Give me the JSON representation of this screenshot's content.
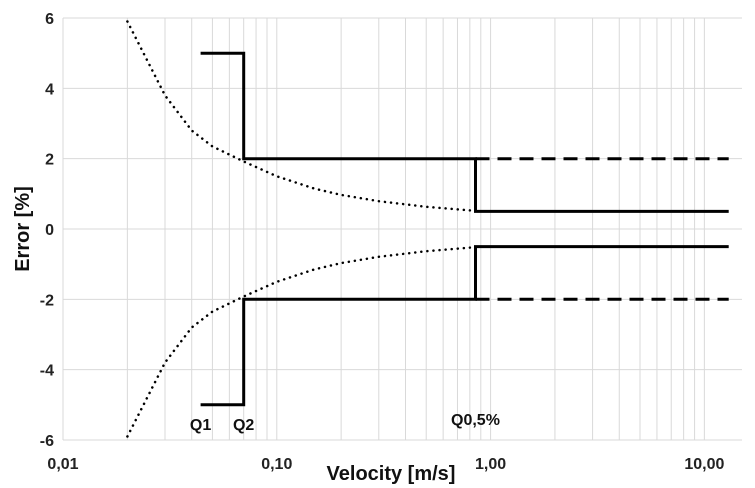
{
  "chart_data": {
    "type": "line",
    "xlabel": "Velocity [m/s]",
    "ylabel": "Error [%]",
    "x_scale": "log",
    "xlim": [
      0.01,
      15
    ],
    "ylim": [
      -6,
      6
    ],
    "grid": true,
    "x_tick_labels": [
      "0,01",
      "0,10",
      "1,00",
      "10,00"
    ],
    "y_ticks": [
      6,
      4,
      2,
      0,
      -2,
      -4,
      -6
    ],
    "y_tick_labels": [
      "6",
      "4",
      "2",
      "0",
      "-2",
      "-4",
      "-6"
    ],
    "series": [
      {
        "style": "solid",
        "points": [
          [
            0.044,
            5
          ],
          [
            0.07,
            5
          ],
          [
            0.07,
            2
          ],
          [
            0.85,
            2
          ],
          [
            0.85,
            0.5
          ],
          [
            13,
            0.5
          ]
        ]
      },
      {
        "style": "solid",
        "points": [
          [
            0.044,
            -5
          ],
          [
            0.07,
            -5
          ],
          [
            0.07,
            -2
          ],
          [
            0.85,
            -2
          ],
          [
            0.85,
            -0.5
          ],
          [
            13,
            -0.5
          ]
        ]
      },
      {
        "style": "dashed",
        "points": [
          [
            0.85,
            2
          ],
          [
            13,
            2
          ]
        ]
      },
      {
        "style": "dashed",
        "points": [
          [
            0.85,
            -2
          ],
          [
            13,
            -2
          ]
        ]
      },
      {
        "style": "dotted",
        "points": [
          [
            0.02,
            5.9
          ],
          [
            0.03,
            3.8
          ],
          [
            0.04,
            2.8
          ],
          [
            0.05,
            2.35
          ],
          [
            0.07,
            1.92
          ],
          [
            0.1,
            1.5
          ],
          [
            0.15,
            1.15
          ],
          [
            0.2,
            0.97
          ],
          [
            0.3,
            0.79
          ],
          [
            0.5,
            0.63
          ],
          [
            0.8,
            0.53
          ]
        ]
      },
      {
        "style": "dotted",
        "points": [
          [
            0.02,
            -5.9
          ],
          [
            0.03,
            -3.8
          ],
          [
            0.04,
            -2.8
          ],
          [
            0.05,
            -2.35
          ],
          [
            0.07,
            -1.92
          ],
          [
            0.1,
            -1.5
          ],
          [
            0.15,
            -1.15
          ],
          [
            0.2,
            -0.97
          ],
          [
            0.3,
            -0.79
          ],
          [
            0.5,
            -0.63
          ],
          [
            0.8,
            -0.53
          ]
        ]
      }
    ],
    "annotations": [
      {
        "text": "Q1",
        "x": 0.044,
        "y": -5.55
      },
      {
        "text": "Q2",
        "x": 0.07,
        "y": -5.55
      },
      {
        "text": "Q0,5%",
        "x": 0.85,
        "y": -5.4
      }
    ]
  }
}
